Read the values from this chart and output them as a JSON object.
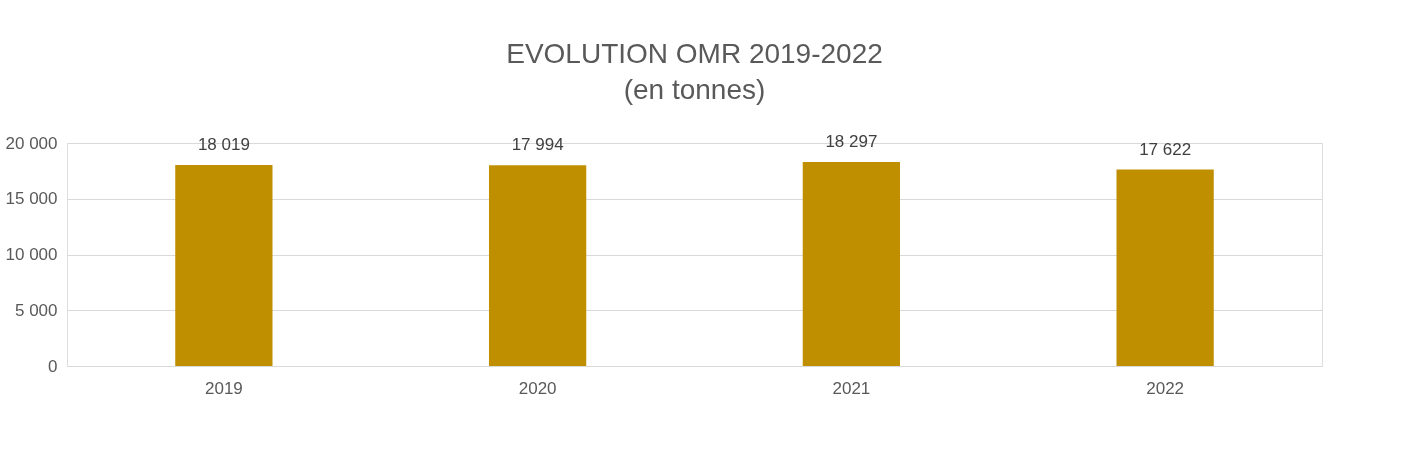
{
  "chart_data": {
    "type": "bar",
    "title": "EVOLUTION OMR 2019-2022",
    "subtitle": "(en tonnes)",
    "categories": [
      "2019",
      "2020",
      "2021",
      "2022"
    ],
    "series": [
      {
        "color": "#bf8f00",
        "values": [
          18019,
          17994,
          18297,
          17622
        ]
      }
    ],
    "value_labels": [
      "18 019",
      "17 994",
      "18 297",
      "17 622"
    ],
    "ylim": [
      0,
      20000
    ],
    "yticks": [
      {
        "value": 0,
        "label": "0"
      },
      {
        "value": 5000,
        "label": "5 000"
      },
      {
        "value": 10000,
        "label": "10 000"
      },
      {
        "value": 15000,
        "label": "15 000"
      },
      {
        "value": 20000,
        "label": "20 000"
      }
    ],
    "grid": "y",
    "legend": false
  }
}
